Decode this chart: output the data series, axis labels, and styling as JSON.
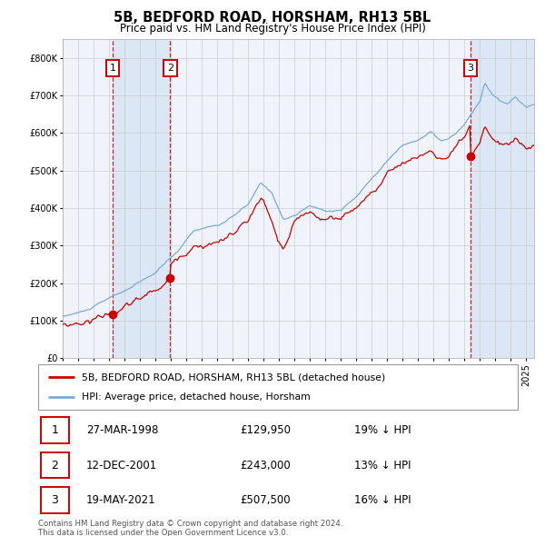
{
  "title": "5B, BEDFORD ROAD, HORSHAM, RH13 5BL",
  "subtitle": "Price paid vs. HM Land Registry's House Price Index (HPI)",
  "legend_line1": "5B, BEDFORD ROAD, HORSHAM, RH13 5BL (detached house)",
  "legend_line2": "HPI: Average price, detached house, Horsham",
  "transactions": [
    {
      "label": "1",
      "date_dec": 1998.23,
      "price": 129950
    },
    {
      "label": "2",
      "date_dec": 2001.95,
      "price": 243000
    },
    {
      "label": "3",
      "date_dec": 2021.38,
      "price": 507500
    }
  ],
  "table_rows": [
    {
      "num": "1",
      "date": "27-MAR-1998",
      "price": "£129,950",
      "note": "19% ↓ HPI"
    },
    {
      "num": "2",
      "date": "12-DEC-2001",
      "price": "£243,000",
      "note": "13% ↓ HPI"
    },
    {
      "num": "3",
      "date": "19-MAY-2021",
      "price": "£507,500",
      "note": "16% ↓ HPI"
    }
  ],
  "footnote1": "Contains HM Land Registry data © Crown copyright and database right 2024.",
  "footnote2": "This data is licensed under the Open Government Licence v3.0.",
  "ylim": [
    0,
    850000
  ],
  "xlim_start": 1995.0,
  "xlim_end": 2025.5,
  "red_color": "#cc0000",
  "blue_color": "#7aaadd",
  "background_plot": "#f0f4fa",
  "shaded_color": "#dce7f5",
  "grid_color": "#cccccc",
  "dashed_color": "#cc0000",
  "box_border": "#cc0000"
}
